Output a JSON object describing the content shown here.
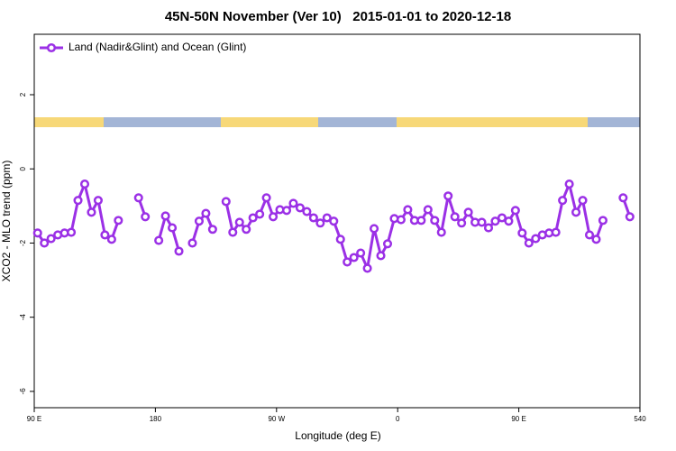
{
  "chart_data": {
    "type": "line",
    "title": "45N-50N November (Ver 10)   2015-01-01 to 2020-12-18",
    "x_label": "Longitude (deg E)",
    "y_label": "XCO2 - MLO trend (ppm)",
    "x": [
      92.5,
      97.5,
      102.5,
      107.5,
      112.5,
      117.5,
      122.5,
      127.5,
      132.5,
      137.5,
      142.5,
      147.5,
      152.5,
      157.5,
      162.5,
      167.5,
      172.5,
      177.5,
      182.5,
      187.5,
      192.5,
      197.5,
      202.5,
      207.5,
      212.5,
      217.5,
      222.5,
      227.5,
      232.5,
      237.5,
      242.5,
      247.5,
      252.5,
      257.5,
      262.5,
      267.5,
      272.5,
      277.5,
      282.5,
      287.5,
      292.5,
      297.5,
      302.5,
      307.5,
      312.5,
      317.5,
      322.5,
      327.5,
      332.5,
      337.5,
      342.5,
      347.5,
      352.5,
      357.5,
      362.5,
      367.5,
      372.5,
      377.5,
      382.5,
      387.5,
      392.5,
      397.5,
      402.5,
      407.5,
      412.5,
      417.5,
      422.5,
      427.5,
      432.5,
      437.5,
      442.5,
      447.5,
      452.5,
      457.5,
      462.5,
      467.5,
      472.5,
      477.5,
      482.5,
      487.5,
      492.5,
      497.5,
      502.5,
      507.5,
      512.5,
      517.5,
      522.5,
      527.5,
      532.5
    ],
    "series": [
      {
        "name": "Land (Nadir&Glint) and Ocean (Glint)",
        "color": "#9b30e6",
        "values": [
          -1.73,
          -2.0,
          -1.88,
          -1.78,
          -1.73,
          -1.71,
          -0.85,
          -0.41,
          -1.17,
          -0.85,
          -1.78,
          -1.9,
          -1.39,
          null,
          null,
          -0.78,
          -1.29,
          null,
          -1.93,
          -1.27,
          -1.59,
          -2.22,
          null,
          -2.0,
          -1.41,
          -1.2,
          -1.63,
          null,
          -0.88,
          -1.71,
          -1.44,
          -1.63,
          -1.32,
          -1.22,
          -0.78,
          -1.29,
          -1.1,
          -1.12,
          -0.93,
          -1.05,
          -1.15,
          -1.32,
          -1.46,
          -1.32,
          -1.41,
          -1.9,
          -2.51,
          -2.39,
          -2.27,
          -2.68,
          -1.61,
          -2.34,
          -2.02,
          -1.34,
          -1.37,
          -1.1,
          -1.39,
          -1.39,
          -1.1,
          -1.39,
          -1.71,
          -0.73,
          -1.29,
          -1.46,
          -1.17,
          -1.44,
          -1.44,
          -1.59,
          -1.41,
          -1.32,
          -1.41,
          -1.12,
          -1.73,
          -2.0,
          -1.88,
          -1.78,
          -1.73,
          -1.71,
          -0.85,
          -0.41,
          -1.17,
          -0.85,
          -1.78,
          -1.9,
          -1.39,
          null,
          null,
          -0.78,
          -1.29
        ]
      }
    ],
    "xlim": [
      90,
      540
    ],
    "xticks": [
      {
        "value": 90,
        "label": "90 E"
      },
      180,
      {
        "value": 270,
        "label": "90 W"
      },
      {
        "value": 360,
        "label": "0"
      },
      {
        "value": 450,
        "label": "90 E"
      },
      540
    ],
    "ylim": [
      -6.44,
      3.63
    ],
    "yticks": [
      -6,
      -4,
      -2,
      0,
      2
    ],
    "legend": "top-left"
  }
}
